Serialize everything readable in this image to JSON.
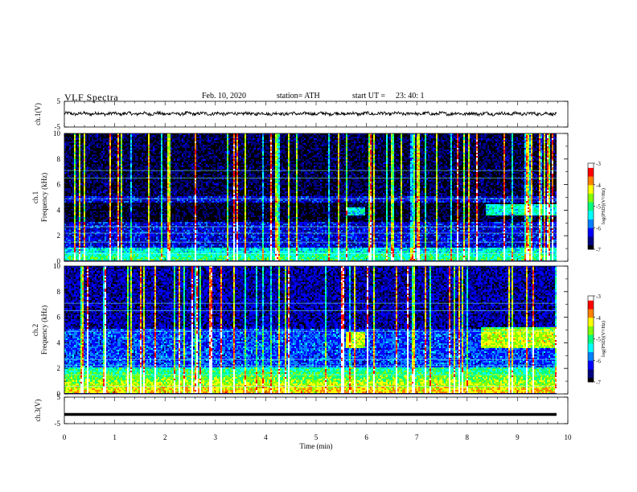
{
  "header": {
    "title": "VLF  Spectra",
    "date": "Feb. 10, 2020",
    "station": "station= ATH",
    "start_label": "start  UT  =",
    "start_time": "23: 40: 1"
  },
  "chart_data": [
    {
      "type": "line",
      "panel": "ch1-waveform",
      "ylabel": "ch.1(V)",
      "ylim": [
        -5,
        5
      ],
      "yticks": [
        "5",
        "-5"
      ],
      "xlim": [
        0,
        10
      ],
      "series": [
        {
          "values": "noise waveform around ~0.2 V, amplitude ~1 V"
        }
      ],
      "color": "#000000"
    },
    {
      "type": "heatmap",
      "panel": "ch1-spectrogram",
      "ylabel": "Frequency  (kHz)",
      "panel_label": "ch.1",
      "ylim": [
        0,
        10
      ],
      "yticks": [
        "0",
        "2",
        "4",
        "6",
        "8",
        "10"
      ],
      "xlim": [
        0,
        9.8
      ],
      "colorbar": {
        "label": "log(PSD)(V²/Hz)",
        "ticks": [
          "-3",
          "-4",
          "-5",
          "-6",
          "-7"
        ],
        "range": [
          -7,
          -3
        ]
      },
      "features": {
        "background_level": -6.3,
        "quiet_band_khz": [
          3.0,
          4.5
        ],
        "enhanced_patches": [
          {
            "t": [
              5.6,
              6.0
            ],
            "f_khz": [
              3.6,
              4.2
            ]
          },
          {
            "t": [
              8.4,
              9.8
            ],
            "f_khz": [
              3.6,
              4.4
            ]
          }
        ],
        "low_freq_strong_band_khz": [
          0,
          1.0
        ]
      }
    },
    {
      "type": "heatmap",
      "panel": "ch2-spectrogram",
      "ylabel": "Frequency  (kHz)",
      "panel_label": "ch.2",
      "ylim": [
        0,
        10
      ],
      "yticks": [
        "0",
        "2",
        "4",
        "6",
        "8",
        "10"
      ],
      "xlim": [
        0,
        9.8
      ],
      "colorbar": {
        "label": "log(PSD)(V²/Hz)",
        "ticks": [
          "-3",
          "-4",
          "-5",
          "-6",
          "-7"
        ],
        "range": [
          -7,
          -3
        ]
      },
      "features": {
        "background_level": -6.0,
        "enhanced_patches": [
          {
            "t": [
              5.6,
              6.0
            ],
            "f_khz": [
              3.6,
              4.8
            ]
          },
          {
            "t": [
              8.3,
              9.8
            ],
            "f_khz": [
              3.6,
              5.2
            ]
          }
        ],
        "low_freq_strong_band_khz": [
          0,
          2.0
        ]
      }
    },
    {
      "type": "line",
      "panel": "ch3-waveform",
      "ylabel": "ch.3(V)",
      "ylim": [
        -5,
        5
      ],
      "yticks": [
        "5",
        "-5"
      ],
      "xlim": [
        0,
        10
      ],
      "series": [
        {
          "values": "constant ~ -1.5 V thick flat trace"
        }
      ],
      "xlabel": "Time  (min)",
      "xticks": [
        "0",
        "1",
        "2",
        "3",
        "4",
        "5",
        "6",
        "7",
        "8",
        "9",
        "10"
      ]
    }
  ],
  "colors": {
    "colormap": [
      "#000000",
      "#00007f",
      "#0000ff",
      "#0080ff",
      "#00ffff",
      "#00ff80",
      "#80ff00",
      "#ffff00",
      "#ff8000",
      "#ff0000",
      "#ffffff"
    ]
  }
}
